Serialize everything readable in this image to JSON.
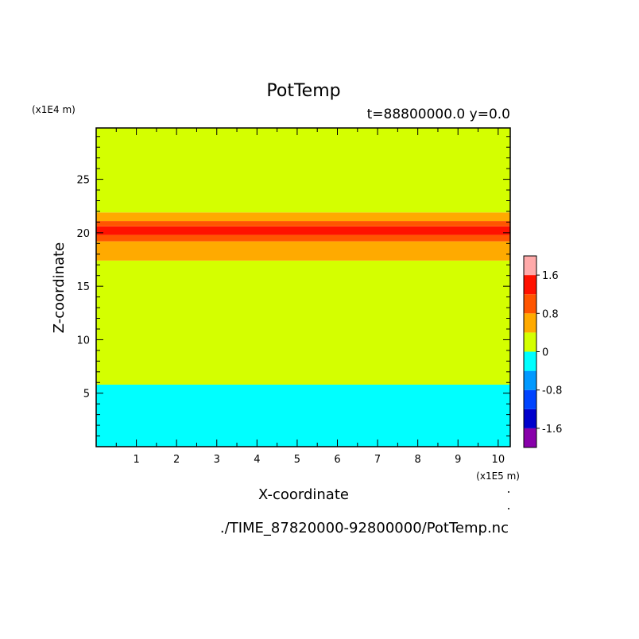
{
  "chart_data": {
    "type": "heatmap",
    "title": "PotTemp",
    "subtitle": "t=88800000.0 y=0.0",
    "xlabel": "X-coordinate",
    "ylabel": "Z-coordinate",
    "x_scale_label": "(x1E5 m)",
    "y_scale_label": "(x1E4 m)",
    "xlim": [
      0,
      10.3
    ],
    "ylim": [
      0,
      29.8
    ],
    "x_ticks": [
      "1",
      "2",
      "3",
      "4",
      "5",
      "6",
      "7",
      "8",
      "9",
      "10"
    ],
    "y_ticks": [
      "5",
      "10",
      "15",
      "20",
      "25"
    ],
    "levels": [
      -2.0,
      -1.6,
      -1.2,
      -0.8,
      -0.4,
      0,
      0.4,
      0.8,
      1.2,
      1.6,
      2.0
    ],
    "colors": [
      "#8800aa",
      "#0000cc",
      "#0044ff",
      "#0099ff",
      "#00ffff",
      "#d4ff00",
      "#ffaa00",
      "#ff5500",
      "#ff1100",
      "#ffaaaa"
    ],
    "colorbar_labels": [
      "1.6",
      "0.8",
      "0",
      "-0.8",
      "-1.6"
    ],
    "bands": [
      {
        "from": 0,
        "to": 5.8,
        "color": "#00ffff",
        "range": "-0.4 to 0"
      },
      {
        "from": 5.8,
        "to": 17.4,
        "color": "#d4ff00",
        "range": "0 to 0.4"
      },
      {
        "from": 17.4,
        "to": 19.2,
        "color": "#ffaa00",
        "range": "0.4 to 0.8"
      },
      {
        "from": 19.2,
        "to": 19.8,
        "color": "#ff5500",
        "range": "0.8 to 1.2"
      },
      {
        "from": 19.8,
        "to": 20.6,
        "color": "#ff1100",
        "range": "1.2 to 1.6"
      },
      {
        "from": 20.6,
        "to": 21.1,
        "color": "#ff5500",
        "range": "0.8 to 1.2"
      },
      {
        "from": 21.1,
        "to": 21.9,
        "color": "#ffaa00",
        "range": "0.4 to 0.8"
      },
      {
        "from": 21.9,
        "to": 29.8,
        "color": "#d4ff00",
        "range": "0 to 0.4"
      }
    ],
    "footer": "./TIME_87820000-92800000/PotTemp.nc"
  }
}
